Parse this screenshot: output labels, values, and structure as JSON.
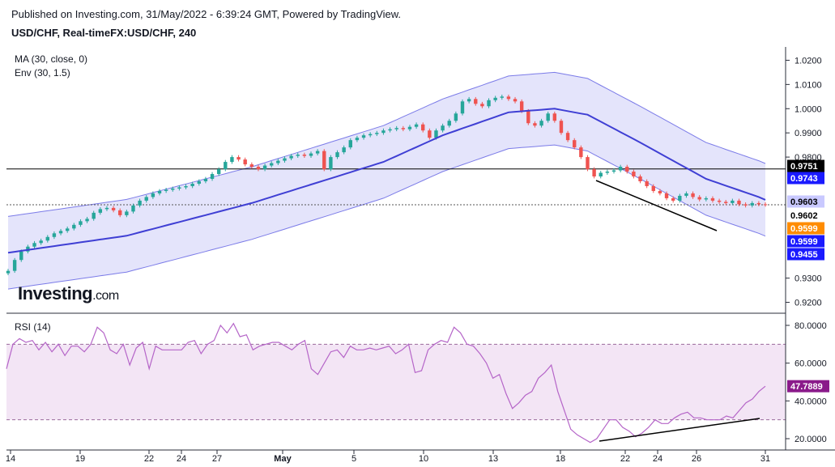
{
  "header": {
    "published": "Published on Investing.com, 31/May/2022 - 6:39:24 GMT, Powered by TradingView.",
    "symbol": "USD/CHF, Real-timeFX:USD/CHF, 240"
  },
  "indicators": {
    "ma": "MA (30, close, 0)",
    "env": "Env (30, 1.5)",
    "rsi": "RSI (14)"
  },
  "logo": {
    "main": "Investing",
    "suffix": ".com"
  },
  "colors": {
    "up": "#26a69a",
    "down": "#ef5350",
    "ma": "#3f3fd4",
    "envelope": "#7b7be8",
    "envelope_fill": "#e4e4fb",
    "rsi": "#b565c8",
    "rsi_fill": "#f3e5f5",
    "label_black": "#000000",
    "label_blue": "#1a1aff",
    "label_orange": "#ff8c00",
    "label_lavender": "#c9c9ff",
    "label_purple": "#8a1a8a"
  },
  "chart_data": [
    {
      "type": "candlestick",
      "title": "USD/CHF, Real-timeFX:USD/CHF, 240",
      "ylim": [
        0.9155,
        1.0255
      ],
      "y_ticks": [
        "1.0200",
        "1.0100",
        "1.0000",
        "0.9900",
        "0.9800",
        "0.9300",
        "0.9200"
      ],
      "x_ticks": [
        "14",
        "19",
        "22",
        "24",
        "27",
        "May",
        "5",
        "10",
        "13",
        "18",
        "22",
        "24",
        "26",
        "31"
      ],
      "closes": [
        0.933,
        0.9375,
        0.941,
        0.943,
        0.9445,
        0.9455,
        0.947,
        0.9485,
        0.9495,
        0.9505,
        0.952,
        0.9535,
        0.9545,
        0.957,
        0.9585,
        0.959,
        0.958,
        0.956,
        0.9575,
        0.96,
        0.962,
        0.9635,
        0.965,
        0.966,
        0.9665,
        0.967,
        0.9675,
        0.968,
        0.969,
        0.97,
        0.971,
        0.973,
        0.975,
        0.978,
        0.98,
        0.979,
        0.977,
        0.976,
        0.975,
        0.9765,
        0.9775,
        0.9785,
        0.9795,
        0.9805,
        0.981,
        0.9805,
        0.9815,
        0.9825,
        0.975,
        0.98,
        0.982,
        0.984,
        0.987,
        0.988,
        0.989,
        0.9895,
        0.99,
        0.991,
        0.9915,
        0.992,
        0.9915,
        0.9925,
        0.9935,
        0.991,
        0.988,
        0.991,
        0.993,
        0.995,
        0.998,
        1.003,
        1.004,
        1.002,
        1.001,
        1.0035,
        1.0045,
        1.005,
        1.004,
        1.003,
        0.999,
        0.994,
        0.993,
        0.995,
        0.998,
        0.995,
        0.99,
        0.987,
        0.984,
        0.98,
        0.975,
        0.972,
        0.9735,
        0.974,
        0.9745,
        0.976,
        0.974,
        0.972,
        0.97,
        0.968,
        0.966,
        0.965,
        0.963,
        0.962,
        0.964,
        0.965,
        0.9635,
        0.9625,
        0.963,
        0.962,
        0.9615,
        0.961,
        0.962,
        0.9605,
        0.96,
        0.961,
        0.9605,
        0.9603
      ],
      "ma": {
        "name": "MA (30, close, 0)",
        "points": [
          [
            0,
            0.9405
          ],
          [
            18,
            0.9475
          ],
          [
            37,
            0.961
          ],
          [
            57,
            0.978
          ],
          [
            66,
            0.989
          ],
          [
            76,
            0.9985
          ],
          [
            83,
            1.0
          ],
          [
            88,
            0.9975
          ],
          [
            96,
            0.986
          ],
          [
            106,
            0.971
          ],
          [
            114,
            0.9635
          ],
          [
            116,
            0.9612
          ]
        ]
      },
      "envelope": {
        "name": "Env (30, 1.5)",
        "upper_offset": 0.015,
        "lower_offset": -0.015
      },
      "price_labels": [
        "0.9751",
        "0.9743",
        "0.9603",
        "0.9602",
        "0.9599",
        "0.9599",
        "0.9455"
      ],
      "reference_lines": [
        0.9751,
        0.9603
      ]
    },
    {
      "type": "line",
      "title": "RSI (14)",
      "ylim": [
        14,
        86
      ],
      "y_ticks": [
        "80.0000",
        "60.0000",
        "40.0000",
        "20.0000"
      ],
      "bands": [
        70,
        30
      ],
      "current_label": "47.7889",
      "values": [
        57,
        70,
        73,
        71,
        72,
        67,
        71,
        66,
        70,
        64,
        69,
        69,
        66,
        70,
        79,
        76,
        67,
        65,
        70,
        59,
        68,
        71,
        57,
        69,
        67,
        67,
        67,
        67,
        71,
        72,
        65,
        70,
        72,
        80,
        76,
        81,
        74,
        75,
        67,
        69,
        70,
        71,
        71,
        69,
        67,
        70,
        72,
        57,
        54,
        60,
        66,
        67,
        63,
        69,
        67,
        67,
        68,
        67,
        68,
        69,
        65,
        67,
        70,
        55,
        56,
        67,
        70,
        72,
        71,
        79,
        76,
        70,
        69,
        65,
        60,
        52,
        54,
        44,
        36,
        39,
        43,
        45,
        52,
        55,
        59,
        45,
        35,
        25,
        22,
        20,
        18,
        20,
        25,
        30,
        30,
        26,
        24,
        21,
        23,
        26,
        30,
        28,
        28,
        31,
        33,
        34,
        31,
        31,
        30,
        30,
        30,
        32,
        31,
        35,
        39,
        41,
        45,
        47.79
      ]
    }
  ]
}
